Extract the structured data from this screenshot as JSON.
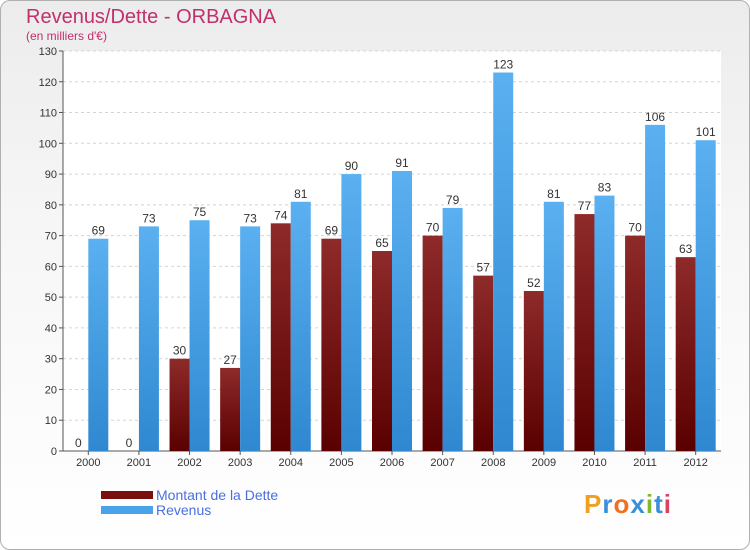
{
  "chart_data": {
    "type": "bar",
    "title": "Revenus/Dette - ORBAGNA",
    "subtitle": "(en milliers d'€)",
    "categories": [
      "2000",
      "2001",
      "2002",
      "2003",
      "2004",
      "2005",
      "2006",
      "2007",
      "2008",
      "2009",
      "2010",
      "2011",
      "2012"
    ],
    "series": [
      {
        "name": "Montant de la Dette",
        "color": "#7a0f0f",
        "values": [
          0,
          0,
          30,
          27,
          74,
          69,
          65,
          70,
          57,
          52,
          77,
          70,
          63
        ]
      },
      {
        "name": "Revenus",
        "color": "#4aa3e8",
        "values": [
          69,
          73,
          75,
          73,
          81,
          90,
          91,
          79,
          123,
          81,
          83,
          106,
          101
        ]
      }
    ],
    "ylim": [
      0,
      130
    ],
    "yticks": [
      0,
      10,
      20,
      30,
      40,
      50,
      60,
      70,
      80,
      90,
      100,
      110,
      120,
      130
    ],
    "grid": true,
    "legend": "bottom-left"
  },
  "branding": {
    "letters": [
      "P",
      "r",
      "o",
      "x",
      "i",
      "t",
      "i"
    ],
    "colors": [
      "#f0a020",
      "#3a8fd8",
      "#f07020",
      "#3a8fd8",
      "#80b830",
      "#3a8fd8",
      "#e04060"
    ]
  }
}
